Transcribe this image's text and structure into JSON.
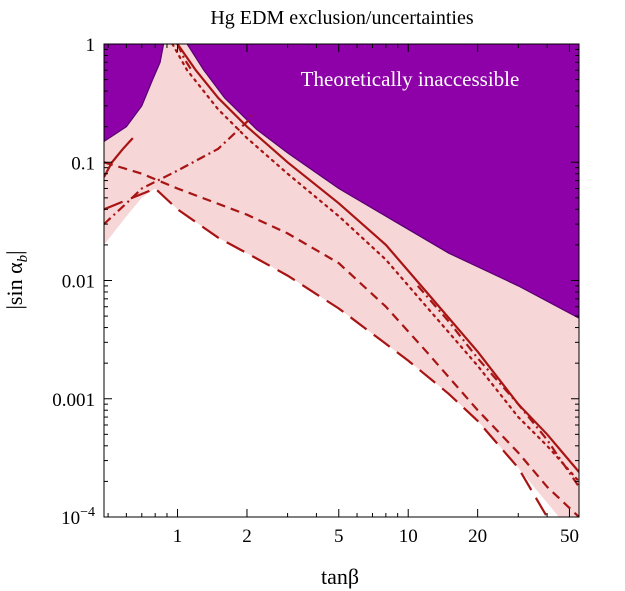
{
  "chart_data": {
    "type": "line",
    "title": "Hg EDM exclusion/uncertainties",
    "xlabel": "tanβ",
    "ylabel": "|sin α_b|",
    "ylabel_main": "|sin α",
    "ylabel_sub": "b",
    "ylabel_close": "|",
    "x_scale": "log",
    "y_scale": "log",
    "xlim": [
      0.48,
      55
    ],
    "ylim": [
      0.0001,
      1
    ],
    "x_ticks": [
      {
        "value": 1,
        "label": "1"
      },
      {
        "value": 2,
        "label": "2"
      },
      {
        "value": 5,
        "label": "5"
      },
      {
        "value": 10,
        "label": "10"
      },
      {
        "value": 20,
        "label": "20"
      },
      {
        "value": 50,
        "label": "50"
      }
    ],
    "y_ticks": [
      {
        "value": 1,
        "label": "1"
      },
      {
        "value": 0.1,
        "label": "0.1"
      },
      {
        "value": 0.01,
        "label": "0.01"
      },
      {
        "value": 0.001,
        "label": "0.001"
      },
      {
        "value": 0.0001,
        "label": "10",
        "exp": "−4"
      }
    ],
    "annotation": "Theoretically inaccessible",
    "colors": {
      "inaccessible": "#8e00a8",
      "inaccessible_edge": "#5a0070",
      "band": "#f6d6d6",
      "line": "#a81414",
      "axis": "#000000"
    },
    "regions": {
      "inaccessible_left": [
        [
          0.48,
          0.15
        ],
        [
          0.6,
          0.2
        ],
        [
          0.7,
          0.3
        ],
        [
          0.78,
          0.5
        ],
        [
          0.84,
          0.7
        ],
        [
          0.87,
          1
        ]
      ],
      "inaccessible_right": [
        [
          1.1,
          1
        ],
        [
          1.3,
          0.6
        ],
        [
          1.6,
          0.35
        ],
        [
          2.2,
          0.19
        ],
        [
          3.0,
          0.12
        ],
        [
          5.0,
          0.06
        ],
        [
          8.0,
          0.035
        ],
        [
          15.0,
          0.017
        ],
        [
          30.0,
          0.009
        ],
        [
          55.0,
          0.0048
        ]
      ],
      "band_upper": [
        [
          0.48,
          0.15
        ],
        [
          0.6,
          0.2
        ],
        [
          0.7,
          0.3
        ],
        [
          0.78,
          0.5
        ],
        [
          0.84,
          0.7
        ],
        [
          0.87,
          1
        ],
        [
          1.1,
          1
        ],
        [
          1.3,
          0.6
        ],
        [
          1.6,
          0.35
        ],
        [
          2.2,
          0.19
        ],
        [
          3.0,
          0.12
        ],
        [
          5.0,
          0.06
        ],
        [
          8.0,
          0.035
        ],
        [
          15.0,
          0.017
        ],
        [
          30.0,
          0.009
        ],
        [
          55.0,
          0.0048
        ]
      ],
      "band_lower": [
        [
          55.0,
          0.0001
        ],
        [
          45.0,
          0.0001
        ],
        [
          30.0,
          0.00026
        ],
        [
          20.0,
          0.00065
        ],
        [
          15.0,
          0.0011
        ],
        [
          10.0,
          0.0021
        ],
        [
          5.0,
          0.0058
        ],
        [
          3.0,
          0.011
        ],
        [
          2.0,
          0.017
        ],
        [
          1.5,
          0.023
        ],
        [
          1.0,
          0.04
        ],
        [
          0.8,
          0.06
        ],
        [
          0.7,
          0.05
        ],
        [
          0.6,
          0.035
        ],
        [
          0.48,
          0.02
        ]
      ]
    },
    "series": [
      {
        "name": "solid",
        "dash": "solid",
        "width": 2.2,
        "points": [
          [
            1.0,
            1
          ],
          [
            1.2,
            0.6
          ],
          [
            1.5,
            0.35
          ],
          [
            2.0,
            0.2
          ],
          [
            3.0,
            0.1
          ],
          [
            5.0,
            0.045
          ],
          [
            8.0,
            0.02
          ],
          [
            12.0,
            0.008
          ],
          [
            20.0,
            0.0025
          ],
          [
            30.0,
            0.0009
          ],
          [
            40.0,
            0.0005
          ],
          [
            55.0,
            0.00024
          ]
        ]
      },
      {
        "name": "solid-left",
        "dash": "solid",
        "width": 2.2,
        "points": [
          [
            0.48,
            0.075
          ],
          [
            0.52,
            0.1
          ],
          [
            0.58,
            0.13
          ],
          [
            0.64,
            0.16
          ]
        ]
      },
      {
        "name": "dotted",
        "dash": "dotted",
        "width": 2.2,
        "points": [
          [
            0.95,
            1
          ],
          [
            1.1,
            0.6
          ],
          [
            1.5,
            0.28
          ],
          [
            2.0,
            0.16
          ],
          [
            3.0,
            0.08
          ],
          [
            5.0,
            0.035
          ],
          [
            8.0,
            0.015
          ],
          [
            12.0,
            0.006
          ],
          [
            20.0,
            0.0019
          ],
          [
            30.0,
            0.0007
          ],
          [
            40.0,
            0.0004
          ],
          [
            55.0,
            0.0002
          ]
        ]
      },
      {
        "name": "dashed",
        "dash": "dashed",
        "width": 2.2,
        "points": [
          [
            0.48,
            0.1
          ],
          [
            0.7,
            0.08
          ],
          [
            1.0,
            0.06
          ],
          [
            2.0,
            0.036
          ],
          [
            3.0,
            0.025
          ],
          [
            5.0,
            0.014
          ],
          [
            8.0,
            0.006
          ],
          [
            12.0,
            0.0025
          ],
          [
            20.0,
            0.0008
          ],
          [
            30.0,
            0.00035
          ],
          [
            40.0,
            0.00018
          ],
          [
            55.0,
            0.0001
          ]
        ]
      },
      {
        "name": "long-dashed",
        "dash": "longdash",
        "width": 2.2,
        "points": [
          [
            0.48,
            0.04
          ],
          [
            0.8,
            0.06
          ],
          [
            1.0,
            0.04
          ],
          [
            1.5,
            0.023
          ],
          [
            2.0,
            0.017
          ],
          [
            3.0,
            0.011
          ],
          [
            5.0,
            0.0058
          ],
          [
            10.0,
            0.0021
          ],
          [
            15.0,
            0.0011
          ],
          [
            20.0,
            0.00065
          ],
          [
            30.0,
            0.00026
          ],
          [
            40.0,
            0.0001
          ]
        ]
      },
      {
        "name": "dot-dashed-rising",
        "dash": "dotdash",
        "width": 2.2,
        "points": [
          [
            0.48,
            0.03
          ],
          [
            0.6,
            0.045
          ],
          [
            0.7,
            0.06
          ],
          [
            1.0,
            0.085
          ],
          [
            1.5,
            0.13
          ],
          [
            2.0,
            0.22
          ],
          [
            2.1,
            0.25
          ]
        ]
      },
      {
        "name": "dot-dashed-upper",
        "dash": "dotdash",
        "width": 2.2,
        "points": [
          [
            1.0,
            1
          ],
          [
            1.07,
            0.75
          ],
          [
            1.15,
            0.6
          ]
        ]
      },
      {
        "name": "dot-dashed-right",
        "dash": "dotdash",
        "width": 2.2,
        "points": [
          [
            11.0,
            0.009
          ],
          [
            15.0,
            0.0045
          ],
          [
            20.0,
            0.0022
          ],
          [
            30.0,
            0.0009
          ],
          [
            40.0,
            0.00045
          ],
          [
            55.0,
            0.00018
          ]
        ]
      }
    ]
  }
}
